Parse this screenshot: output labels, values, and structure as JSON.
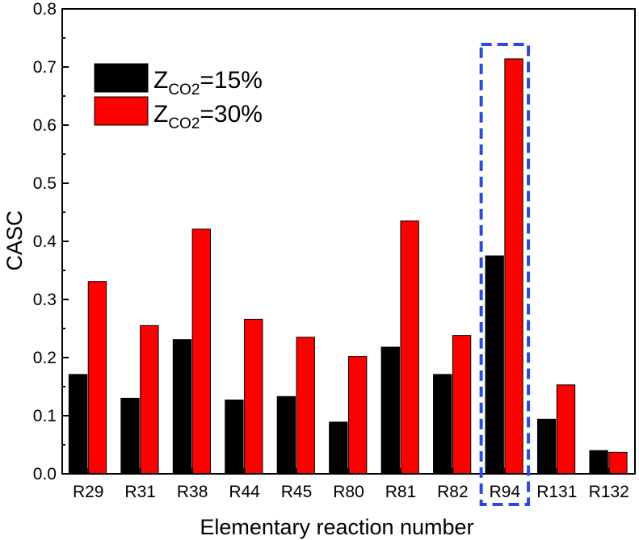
{
  "chart_data": {
    "type": "bar",
    "title": "",
    "xlabel": "Elementary reaction number",
    "ylabel": "CASC",
    "ylim": [
      0,
      0.8
    ],
    "yticks": [
      "0.0",
      "0.1",
      "0.2",
      "0.3",
      "0.4",
      "0.5",
      "0.6",
      "0.7",
      "0.8"
    ],
    "categories": [
      "R29",
      "R31",
      "R38",
      "R44",
      "R45",
      "R80",
      "R81",
      "R82",
      "R94",
      "R131",
      "R132"
    ],
    "series": [
      {
        "name": "Z_CO2=15%",
        "legend": {
          "main": "Z",
          "sub": "CO2",
          "rest": "=15%"
        },
        "color": "#000000",
        "values": [
          0.171,
          0.13,
          0.231,
          0.127,
          0.133,
          0.089,
          0.218,
          0.171,
          0.375,
          0.094,
          0.04
        ]
      },
      {
        "name": "Z_CO2=30%",
        "legend": {
          "main": "Z",
          "sub": "CO2",
          "rest": "=30%"
        },
        "color": "#ff0000",
        "values": [
          0.331,
          0.255,
          0.421,
          0.266,
          0.235,
          0.202,
          0.435,
          0.238,
          0.714,
          0.153,
          0.037
        ]
      }
    ],
    "highlight": {
      "category": "R94",
      "color": "#2b4bdc",
      "style": "dashed"
    },
    "legend_position": "top-left"
  }
}
